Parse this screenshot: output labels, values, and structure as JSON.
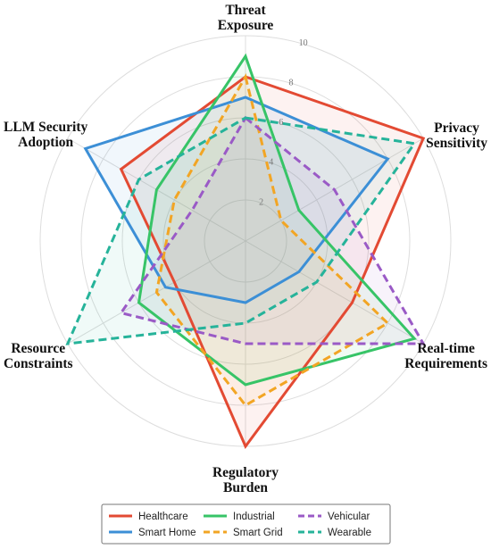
{
  "chart_data": {
    "type": "radar",
    "title": "",
    "axes": [
      [
        "Threat",
        "Exposure"
      ],
      [
        "Privacy",
        "Sensitivity"
      ],
      [
        "Real-time",
        "Requirements"
      ],
      [
        "Regulatory",
        "Burden"
      ],
      [
        "Resource",
        "Constraints"
      ],
      [
        "LLM Security",
        "Adoption"
      ]
    ],
    "rlim": [
      0,
      10
    ],
    "ticks": [
      2,
      4,
      6,
      8,
      10
    ],
    "tick_labels": [
      "2",
      "4",
      "6",
      "8",
      "10"
    ],
    "grid": true,
    "legend_position": "bottom",
    "series": [
      {
        "name": "Healthcare",
        "values": [
          8.0,
          10.0,
          6.0,
          10.0,
          4.0,
          7.0
        ],
        "color": "#e34a33",
        "dash": "solid"
      },
      {
        "name": "Smart Home",
        "values": [
          7.0,
          8.0,
          3.0,
          3.0,
          4.5,
          9.0
        ],
        "color": "#3c8fd6",
        "dash": "solid"
      },
      {
        "name": "Industrial",
        "values": [
          9.0,
          3.0,
          9.5,
          7.0,
          6.0,
          5.0
        ],
        "color": "#37c467",
        "dash": "solid"
      },
      {
        "name": "Smart Grid",
        "values": [
          8.0,
          2.0,
          8.0,
          8.0,
          5.0,
          4.0
        ],
        "color": "#f2a524",
        "dash": "dashed"
      },
      {
        "name": "Vehicular",
        "values": [
          6.0,
          5.0,
          10.0,
          5.0,
          7.0,
          3.0
        ],
        "color": "#9a5ac6",
        "dash": "dashed"
      },
      {
        "name": "Wearable",
        "values": [
          6.0,
          9.5,
          4.0,
          4.0,
          10.0,
          6.0
        ],
        "color": "#26b39a",
        "dash": "dashed"
      }
    ]
  }
}
